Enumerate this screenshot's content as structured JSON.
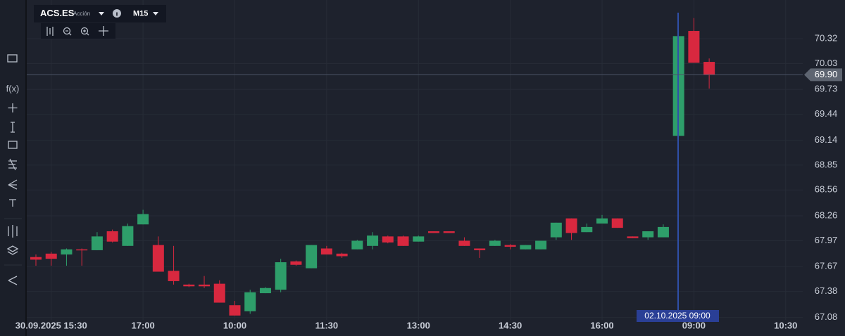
{
  "chart_data": {
    "type": "candlestick",
    "symbol": "ACS.ES",
    "instrument_type": "Acción",
    "timeframe": "M15",
    "indicator_icon": "f(x)",
    "crosshair_label": "02.10.2025 09:00",
    "price_marker": {
      "value": 69.9,
      "label": "69.90"
    },
    "up_color": "#2e9e6a",
    "down_color": "#d8283f",
    "grid": true,
    "categories": [
      null,
      "30.09.2025 15:30",
      null,
      null,
      null,
      null,
      null,
      "17:00",
      null,
      null,
      null,
      null,
      null,
      "10:00",
      null,
      null,
      null,
      null,
      null,
      "11:30",
      null,
      null,
      null,
      null,
      null,
      "13:00",
      null,
      null,
      null,
      null,
      null,
      "14:30",
      null,
      null,
      null,
      null,
      null,
      "16:00",
      null,
      null,
      null,
      null,
      null,
      "09:00",
      null,
      null,
      null,
      null,
      null,
      "10:30"
    ],
    "open": [
      67.78,
      67.82,
      67.81,
      67.87,
      67.86,
      68.08,
      67.91,
      68.16,
      67.92,
      67.62,
      67.46,
      67.46,
      67.47,
      67.22,
      67.15,
      67.36,
      67.4,
      67.73,
      67.65,
      67.88,
      67.82,
      67.87,
      67.91,
      68.02,
      68.02,
      67.96,
      68.08,
      68.08,
      67.97,
      67.88,
      67.91,
      67.92,
      67.87,
      67.87,
      68.01,
      68.23,
      68.07,
      68.17,
      68.23,
      68.02,
      68.01,
      68.01,
      69.19,
      70.41,
      70.05,
      null,
      null,
      null,
      null,
      null
    ],
    "high": [
      67.81,
      67.84,
      67.88,
      67.88,
      68.07,
      68.1,
      68.17,
      68.33,
      68.02,
      67.91,
      67.47,
      67.56,
      67.51,
      67.27,
      67.4,
      67.43,
      67.76,
      67.74,
      67.92,
      67.91,
      67.83,
      67.98,
      68.07,
      68.03,
      68.03,
      68.03,
      68.08,
      68.08,
      68.01,
      67.88,
      67.98,
      67.93,
      67.92,
      67.97,
      68.18,
      68.23,
      68.17,
      68.27,
      68.23,
      68.02,
      68.08,
      68.16,
      70.35,
      70.56,
      70.09,
      null,
      null,
      null,
      null,
      null
    ],
    "low": [
      67.68,
      67.68,
      67.68,
      67.68,
      67.86,
      67.95,
      67.91,
      68.16,
      67.61,
      67.46,
      67.43,
      67.42,
      67.25,
      67.1,
      67.12,
      67.36,
      67.37,
      67.68,
      67.65,
      67.81,
      67.77,
      67.87,
      67.87,
      67.94,
      67.91,
      67.96,
      68.06,
      68.06,
      67.91,
      67.77,
      67.91,
      67.87,
      67.87,
      67.87,
      67.98,
      67.98,
      68.07,
      68.17,
      68.12,
      68.0,
      67.98,
      68.01,
      69.19,
      70.04,
      69.74,
      null,
      null,
      null,
      null,
      null
    ],
    "close": [
      67.75,
      67.76,
      67.87,
      67.86,
      68.02,
      67.96,
      68.14,
      68.28,
      67.61,
      67.5,
      67.44,
      67.44,
      67.25,
      67.1,
      67.37,
      67.42,
      67.72,
      67.69,
      67.92,
      67.81,
      67.79,
      67.97,
      68.03,
      67.95,
      67.91,
      68.02,
      68.06,
      68.06,
      67.91,
      67.86,
      67.97,
      67.9,
      67.92,
      67.97,
      68.18,
      68.06,
      68.13,
      68.23,
      68.12,
      68.0,
      68.08,
      68.13,
      70.35,
      70.04,
      69.9,
      null,
      null,
      null,
      null,
      null
    ],
    "ylim": [
      67.05,
      70.77
    ],
    "yticks": [
      67.08,
      67.38,
      67.67,
      67.97,
      68.26,
      68.56,
      68.85,
      69.14,
      69.44,
      69.73,
      70.03,
      70.32
    ]
  }
}
